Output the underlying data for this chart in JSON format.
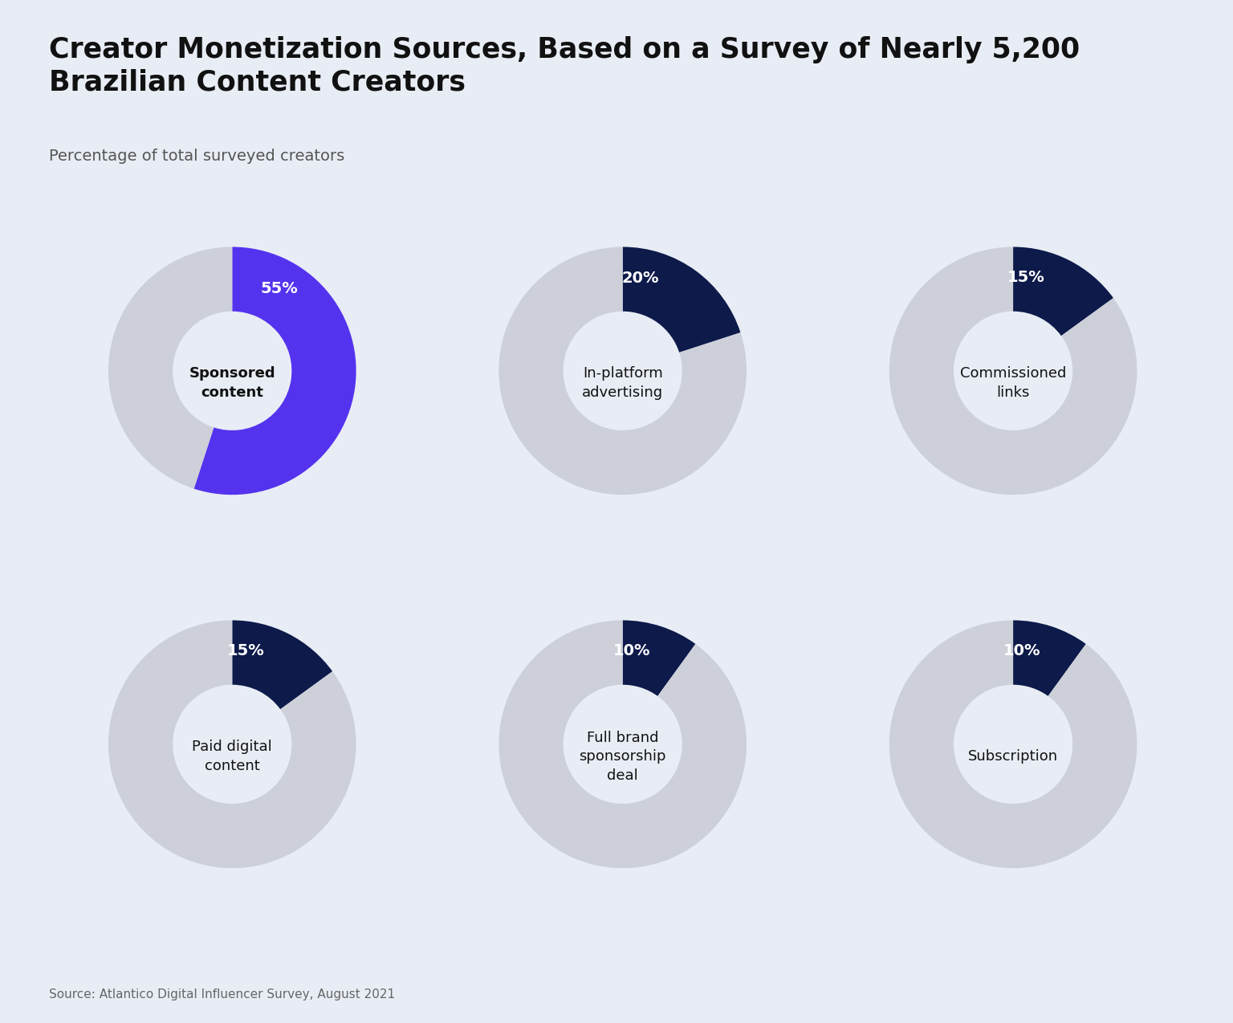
{
  "title": "Creator Monetization Sources, Based on a Survey of Nearly 5,200\nBrazilian Content Creators",
  "subtitle": "Percentage of total surveyed creators",
  "source": "Source: Atlantico Digital Influencer Survey, August 2021",
  "background_color": "#e8edf5",
  "donut_bg_color": "#cdd0d8",
  "charts": [
    {
      "label": "Sponsored\ncontent",
      "value": 55,
      "color": "#5533ee",
      "text_color": "#ffffff",
      "label_bold": true
    },
    {
      "label": "In-platform\nadvertising",
      "value": 20,
      "color": "#0d1a4a",
      "text_color": "#ffffff",
      "label_bold": false
    },
    {
      "label": "Commissioned\nlinks",
      "value": 15,
      "color": "#0d1a4a",
      "text_color": "#ffffff",
      "label_bold": false
    },
    {
      "label": "Paid digital\ncontent",
      "value": 15,
      "color": "#0d1a4a",
      "text_color": "#ffffff",
      "label_bold": false
    },
    {
      "label": "Full brand\nsponsorship\ndeal",
      "value": 10,
      "color": "#0d1a4a",
      "text_color": "#ffffff",
      "label_bold": false
    },
    {
      "label": "Subscription",
      "value": 10,
      "color": "#0d1a4a",
      "text_color": "#ffffff",
      "label_bold": false
    }
  ]
}
